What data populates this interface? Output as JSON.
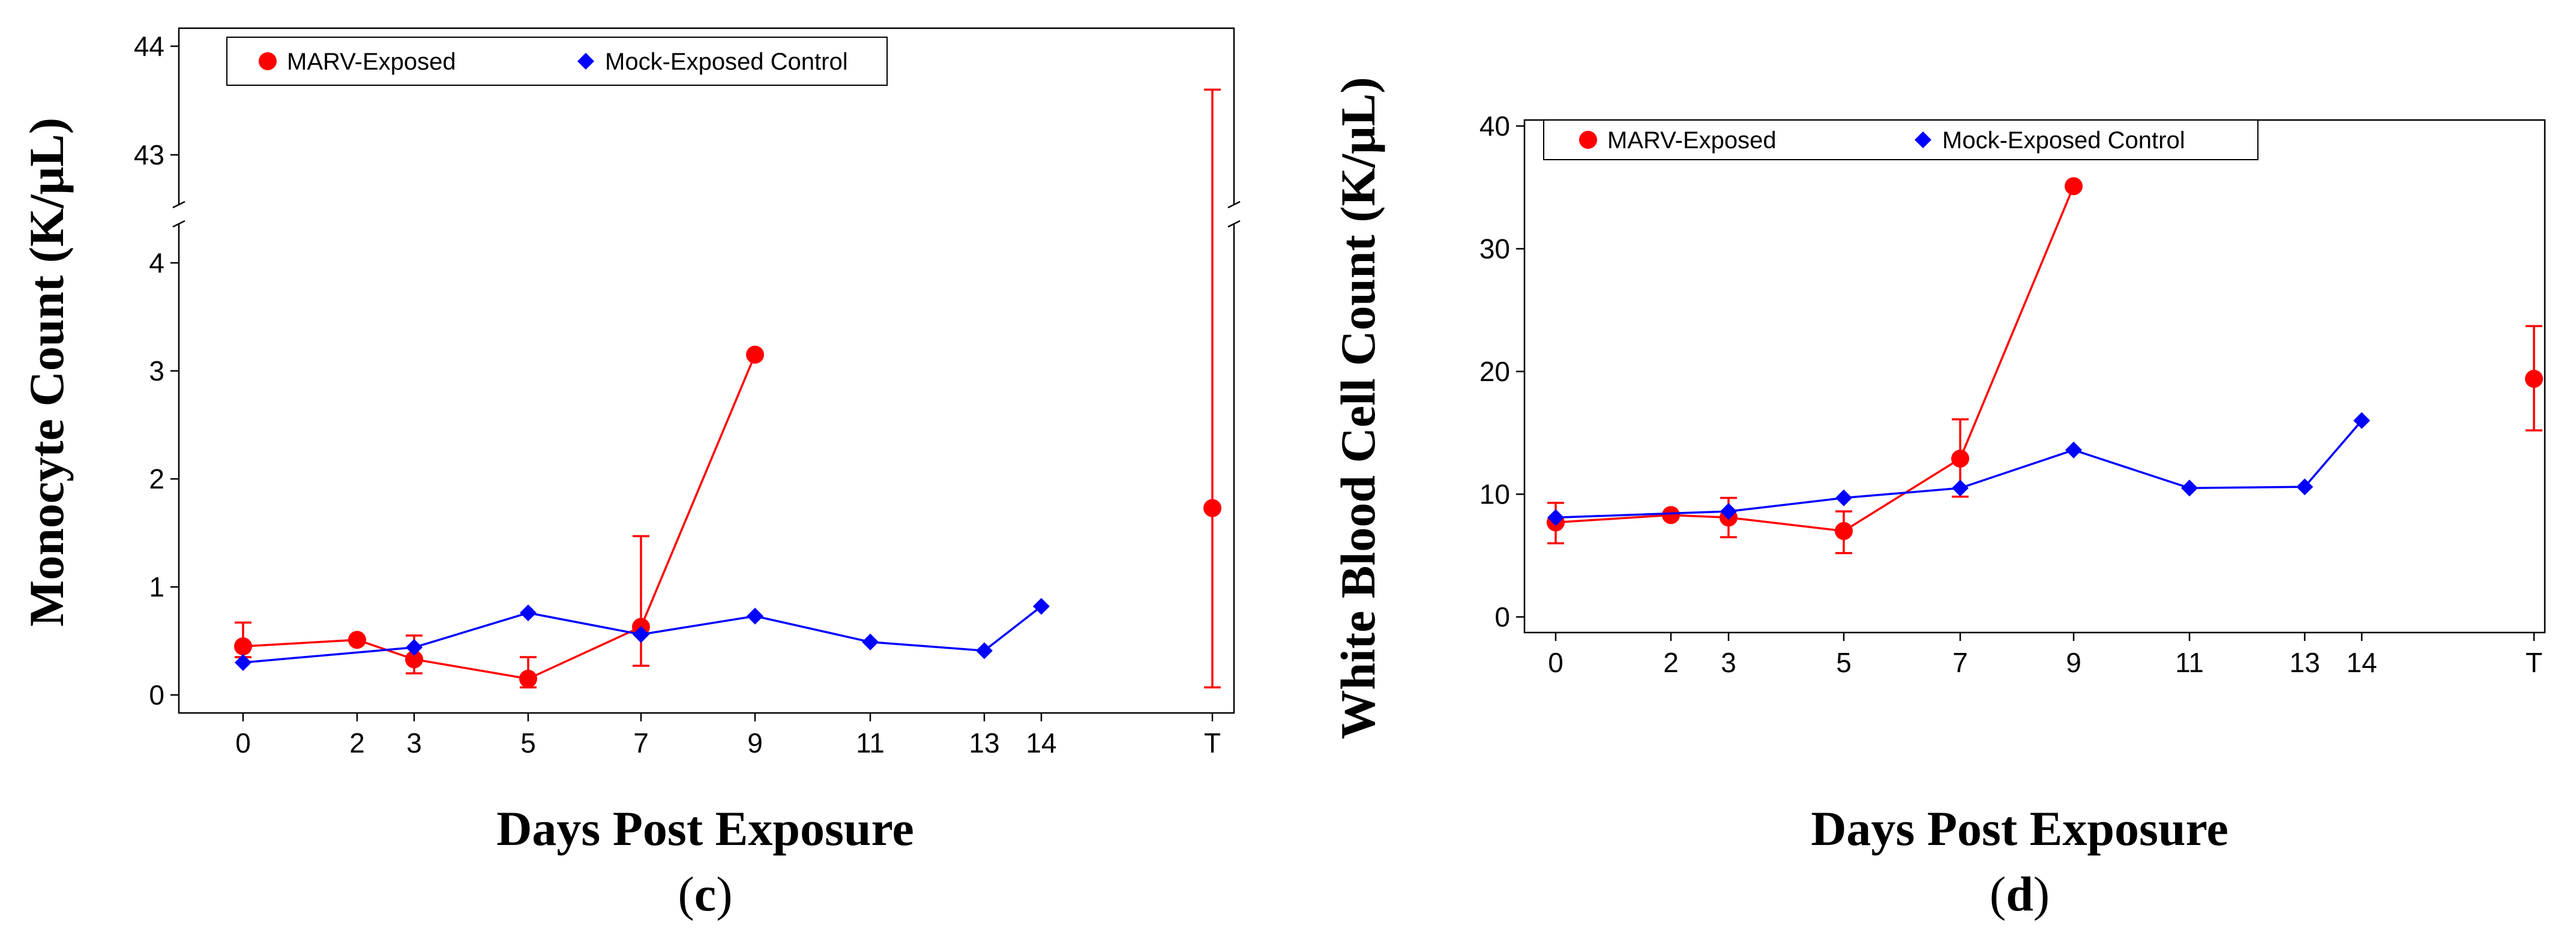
{
  "colors": {
    "marv": "#ff0000",
    "mock": "#0000ff",
    "axis": "#000000"
  },
  "chart_data": [
    {
      "type": "line",
      "panel_label": "c",
      "xlabel": "Days Post Exposure",
      "ylabel": "Monocyte Count (K/μL)",
      "x_tick_labels": [
        "0",
        "2",
        "3",
        "5",
        "7",
        "9",
        "11",
        "13",
        "14",
        "T"
      ],
      "y_ticks_lower": [
        0,
        1,
        2,
        3,
        4
      ],
      "y_ticks_upper": [
        43,
        44
      ],
      "ylim_lower": [
        -0.1,
        4.5
      ],
      "ylim_upper": [
        42.5,
        44.1
      ],
      "axis_break": true,
      "legend": {
        "placement": "top-left",
        "entries": [
          {
            "label": "MARV-Exposed",
            "series": "marv"
          },
          {
            "label": "Mock-Exposed Control",
            "series": "mock"
          }
        ]
      },
      "series": [
        {
          "key": "marv",
          "name": "MARV-Exposed",
          "marker": "circle",
          "points": [
            {
              "x": "0",
              "y": 0.45,
              "err_low": 0.35,
              "err_high": 0.67
            },
            {
              "x": "2",
              "y": 0.51
            },
            {
              "x": "3",
              "y": 0.33,
              "err_low": 0.2,
              "err_high": 0.55
            },
            {
              "x": "5",
              "y": 0.15,
              "err_low": 0.07,
              "err_high": 0.35
            },
            {
              "x": "7",
              "y": 0.63,
              "err_low": 0.27,
              "err_high": 1.47
            },
            {
              "x": "9",
              "y": 3.15
            }
          ],
          "separate_points": [
            {
              "x": "T",
              "y": 1.73,
              "err_low": 0.07,
              "err_high": 43.6
            }
          ]
        },
        {
          "key": "mock",
          "name": "Mock-Exposed Control",
          "marker": "diamond",
          "points": [
            {
              "x": "0",
              "y": 0.3
            },
            {
              "x": "3",
              "y": 0.44
            },
            {
              "x": "5",
              "y": 0.76
            },
            {
              "x": "7",
              "y": 0.56
            },
            {
              "x": "9",
              "y": 0.73
            },
            {
              "x": "11",
              "y": 0.49
            },
            {
              "x": "13",
              "y": 0.41
            },
            {
              "x": "14",
              "y": 0.82
            }
          ]
        }
      ]
    },
    {
      "type": "line",
      "panel_label": "d",
      "xlabel": "Days Post Exposure",
      "ylabel": "White Blood Cell Count (K/μL)",
      "x_tick_labels": [
        "0",
        "2",
        "3",
        "5",
        "7",
        "9",
        "11",
        "13",
        "14",
        "T"
      ],
      "y_ticks": [
        0,
        10,
        20,
        30,
        40
      ],
      "ylim": [
        -1,
        41
      ],
      "legend": {
        "placement": "top-left",
        "entries": [
          {
            "label": "MARV-Exposed",
            "series": "marv"
          },
          {
            "label": "Mock-Exposed Control",
            "series": "mock"
          }
        ]
      },
      "series": [
        {
          "key": "marv",
          "name": "MARV-Exposed",
          "marker": "circle",
          "points": [
            {
              "x": "0",
              "y": 7.7,
              "err_low": 6.0,
              "err_high": 9.3
            },
            {
              "x": "2",
              "y": 8.3
            },
            {
              "x": "3",
              "y": 8.1,
              "err_low": 6.5,
              "err_high": 9.7
            },
            {
              "x": "5",
              "y": 7.0,
              "err_low": 5.2,
              "err_high": 8.6
            },
            {
              "x": "7",
              "y": 12.9,
              "err_low": 9.8,
              "err_high": 16.1
            },
            {
              "x": "9",
              "y": 35.1
            }
          ],
          "separate_points": [
            {
              "x": "T",
              "y": 19.4,
              "err_low": 15.2,
              "err_high": 23.7
            }
          ]
        },
        {
          "key": "mock",
          "name": "Mock-Exposed Control",
          "marker": "diamond",
          "points": [
            {
              "x": "0",
              "y": 8.1
            },
            {
              "x": "3",
              "y": 8.6
            },
            {
              "x": "5",
              "y": 9.7
            },
            {
              "x": "7",
              "y": 10.5
            },
            {
              "x": "9",
              "y": 13.6
            },
            {
              "x": "11",
              "y": 10.5
            },
            {
              "x": "13",
              "y": 10.6
            },
            {
              "x": "14",
              "y": 16.0
            }
          ]
        }
      ]
    }
  ]
}
